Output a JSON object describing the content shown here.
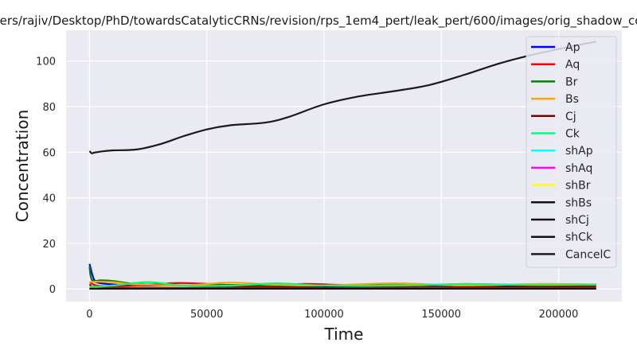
{
  "chart_data": {
    "type": "line",
    "title": "/Users/rajiv/Desktop/PhD/towardsCatalyticCRNs/revision/rps_1em4_pert/leak_pert/600/images/orig_shadow_conc",
    "xlabel": "Time",
    "ylabel": "Concentration",
    "xlim": [
      -10000,
      227000
    ],
    "ylim": [
      -5.5,
      113.5
    ],
    "xticks": [
      0,
      50000,
      100000,
      150000,
      200000
    ],
    "xtick_labels": [
      "0",
      "50000",
      "100000",
      "150000",
      "200000"
    ],
    "yticks": [
      0,
      20,
      40,
      60,
      80,
      100
    ],
    "ytick_labels": [
      "0",
      "20",
      "40",
      "60",
      "80",
      "100"
    ],
    "grid": true,
    "legend_position": "top-right",
    "background": "#eaeaf2",
    "series": [
      {
        "name": "Ap",
        "color": "#0000ff",
        "x": [
          0,
          2000,
          5000,
          10000,
          20000,
          50000,
          100000,
          150000,
          216000
        ],
        "y": [
          11,
          4,
          2.5,
          2,
          1.5,
          1.5,
          1.2,
          1.5,
          1.5
        ]
      },
      {
        "name": "Aq",
        "color": "#ff0000",
        "x": [
          0,
          3000,
          10000,
          20000,
          30000,
          40000,
          55000,
          70000,
          90000,
          110000,
          130000,
          160000,
          190000,
          216000
        ],
        "y": [
          3,
          1.5,
          1.2,
          1.5,
          2.2,
          2.6,
          2,
          1,
          2.2,
          1.6,
          1,
          2.2,
          1.5,
          1.5
        ]
      },
      {
        "name": "Br",
        "color": "#008000",
        "x": [
          0,
          1000,
          5000,
          10000,
          20000,
          40000,
          60000,
          100000,
          150000,
          216000
        ],
        "y": [
          10,
          4,
          3.8,
          3.5,
          2.2,
          1.5,
          1.8,
          1.5,
          1.8,
          1.8
        ]
      },
      {
        "name": "Bs",
        "color": "#ffa500",
        "x": [
          0,
          3000,
          10000,
          20000,
          40000,
          60000,
          80000,
          100000,
          130000,
          160000,
          190000,
          216000
        ],
        "y": [
          3,
          3.2,
          3,
          2,
          1.5,
          2.8,
          1.8,
          1.5,
          2.5,
          1.5,
          2.2,
          2
        ]
      },
      {
        "name": "Cj",
        "color": "#800000",
        "x": [
          0,
          2000,
          10000,
          40000,
          80000,
          120000,
          160000,
          216000
        ],
        "y": [
          2,
          0.8,
          0.5,
          0.5,
          0.7,
          0.5,
          0.8,
          0.8
        ]
      },
      {
        "name": "Ck",
        "color": "#00ff7f",
        "x": [
          0,
          3000,
          10000,
          25000,
          40000,
          60000,
          80000,
          100000,
          130000,
          160000,
          190000,
          216000
        ],
        "y": [
          1,
          1,
          1.5,
          3,
          1.5,
          1.5,
          2.5,
          1.5,
          1.5,
          2.2,
          1.8,
          2
        ]
      },
      {
        "name": "shAp",
        "color": "#00ffff",
        "x": [
          0,
          216000
        ],
        "y": [
          0.2,
          0.2
        ]
      },
      {
        "name": "shAq",
        "color": "#ff00ff",
        "x": [
          0,
          216000
        ],
        "y": [
          0.2,
          0.2
        ]
      },
      {
        "name": "shBr",
        "color": "#ffff00",
        "x": [
          0,
          216000
        ],
        "y": [
          0.2,
          0.2
        ]
      },
      {
        "name": "shBs",
        "color": "#111111",
        "x": [
          0,
          216000
        ],
        "y": [
          0.1,
          0.1
        ]
      },
      {
        "name": "shCj",
        "color": "#111111",
        "x": [
          0,
          216000
        ],
        "y": [
          0.1,
          0.1
        ]
      },
      {
        "name": "shCk",
        "color": "#111111",
        "x": [
          0,
          216000
        ],
        "y": [
          0.1,
          0.1
        ]
      },
      {
        "name": "CancelC",
        "color": "#1a1a1a",
        "x": [
          0,
          1000,
          2000,
          5000,
          10000,
          20000,
          30000,
          40000,
          50000,
          60000,
          75000,
          85000,
          100000,
          115000,
          130000,
          145000,
          160000,
          175000,
          190000,
          205000,
          216000
        ],
        "y": [
          60.5,
          59.5,
          59.8,
          60.3,
          60.8,
          61.2,
          63.5,
          67,
          70,
          71.8,
          73,
          75.5,
          81,
          84.5,
          86.8,
          89.5,
          94,
          99,
          103,
          106.3,
          108.5
        ]
      }
    ]
  }
}
